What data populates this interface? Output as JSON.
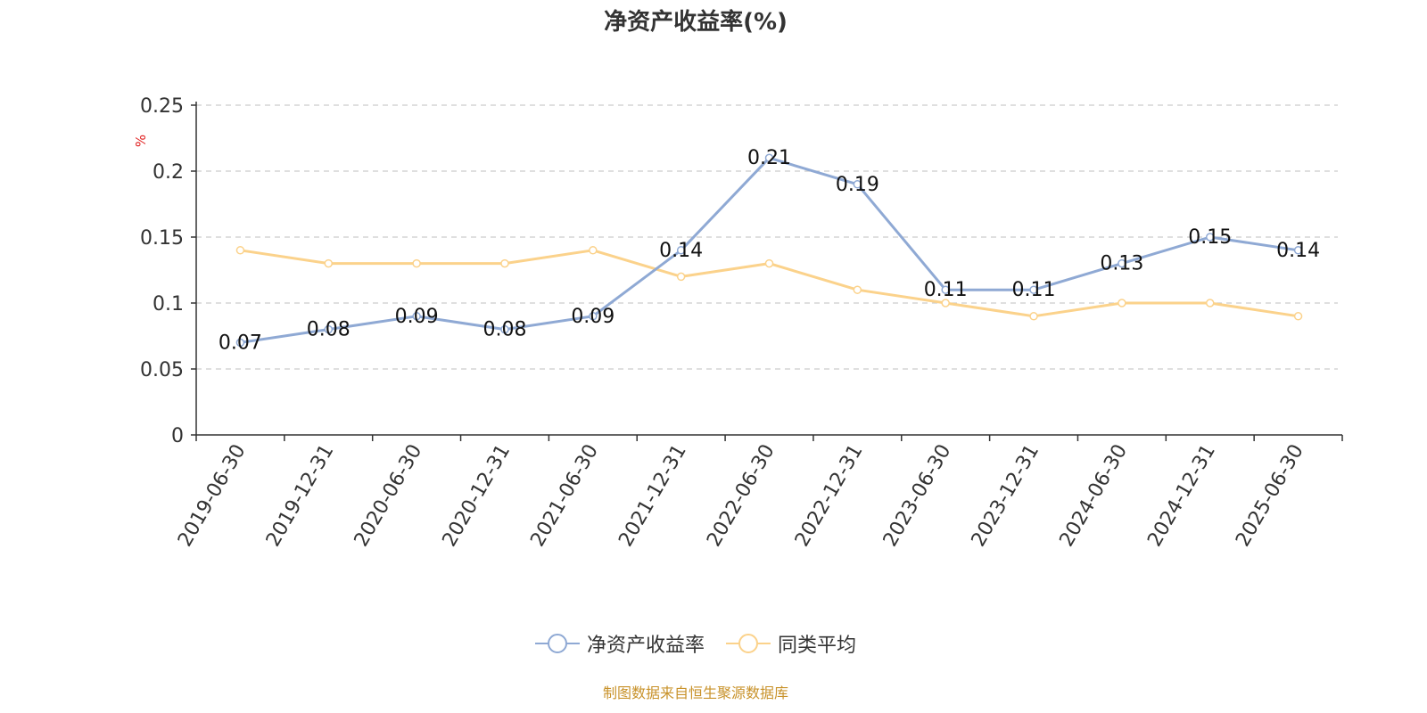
{
  "title": "净资产收益率(%)",
  "source_note": "制图数据来自恒生聚源数据库",
  "colors": {
    "series1": "#8fa9d4",
    "series2": "#fbd28b",
    "axis": "#333333",
    "grid": "#cccccc",
    "unit": "#e02020",
    "source": "#c8922a"
  },
  "chart_data": {
    "type": "line",
    "title": "净资产收益率(%)",
    "ylabel": "%",
    "xlabel": "",
    "ylim": [
      0,
      0.25
    ],
    "yticks": [
      "0",
      "0.05",
      "0.1",
      "0.15",
      "0.2",
      "0.25"
    ],
    "grid": true,
    "legend_position": "bottom",
    "x": [
      "2019-06-30",
      "2019-12-31",
      "2020-06-30",
      "2020-12-31",
      "2021-06-30",
      "2021-12-31",
      "2022-06-30",
      "2022-12-31",
      "2023-06-30",
      "2023-12-31",
      "2024-06-30",
      "2024-12-31",
      "2025-06-30"
    ],
    "series": [
      {
        "name": "净资产收益率",
        "values": [
          0.07,
          0.08,
          0.09,
          0.08,
          0.09,
          0.14,
          0.21,
          0.19,
          0.11,
          0.11,
          0.13,
          0.15,
          0.14
        ],
        "labels": [
          "0.07",
          "0.08",
          "0.09",
          "0.08",
          "0.09",
          "0.14",
          "0.21",
          "0.19",
          "0.11",
          "0.11",
          "0.13",
          "0.15",
          "0.14"
        ]
      },
      {
        "name": "同类平均",
        "values": [
          0.14,
          0.13,
          0.13,
          0.13,
          0.14,
          0.12,
          0.13,
          0.11,
          0.1,
          0.09,
          0.1,
          0.1,
          0.09
        ]
      }
    ]
  }
}
